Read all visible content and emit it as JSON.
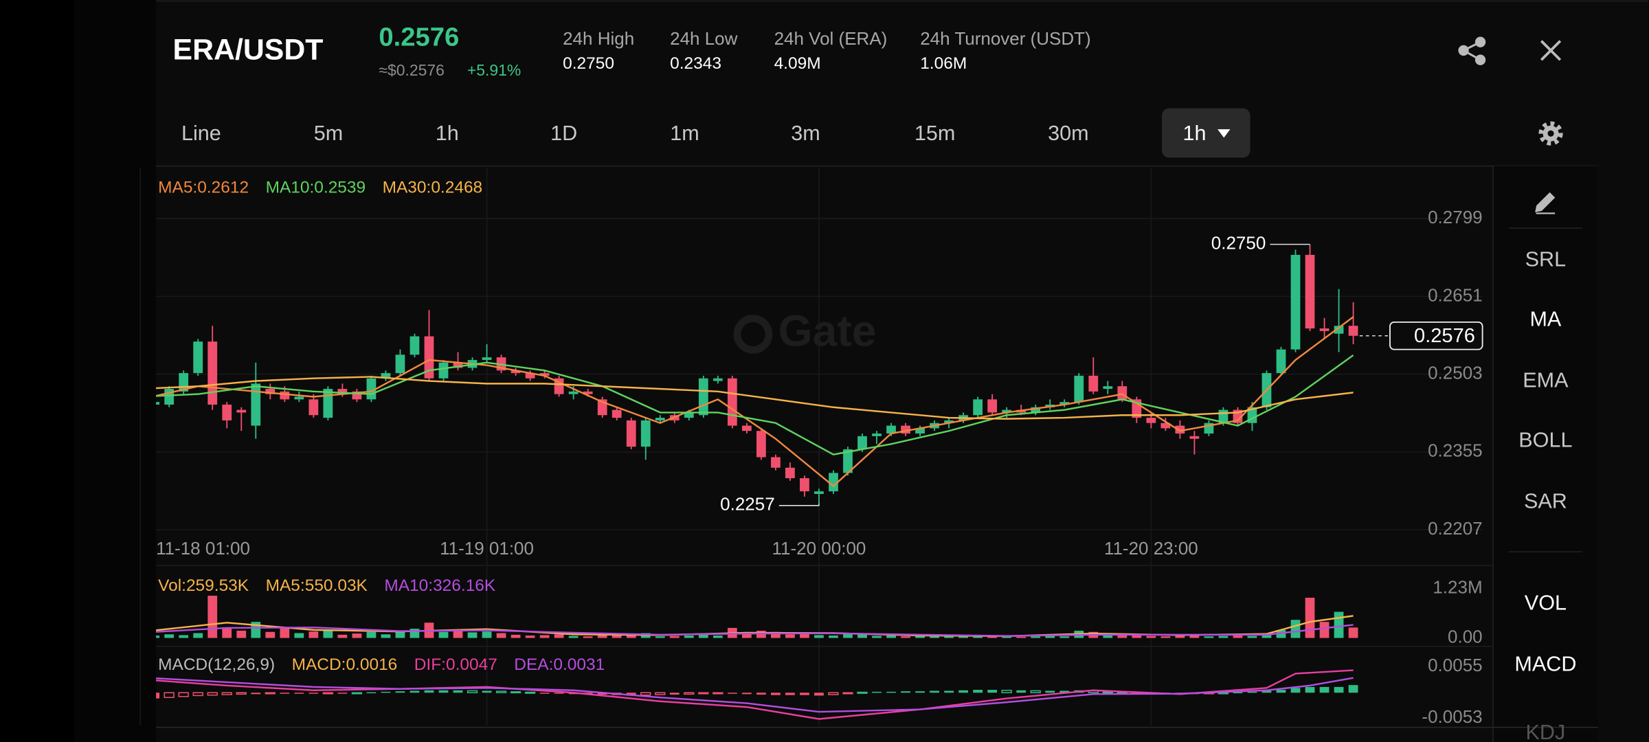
{
  "header": {
    "pair": "ERA/USDT",
    "price": "0.2576",
    "fiat_price": "≈$0.2576",
    "change": "+5.91%",
    "stats": [
      {
        "label": "24h High",
        "value": "0.2750"
      },
      {
        "label": "24h Low",
        "value": "0.2343"
      },
      {
        "label": "24h Vol (ERA)",
        "value": "4.09M"
      },
      {
        "label": "24h Turnover (USDT)",
        "value": "1.06M"
      }
    ]
  },
  "tabs": [
    "Line",
    "5m",
    "1h",
    "1D",
    "1m",
    "3m",
    "15m",
    "30m"
  ],
  "interval_selector": "1h",
  "watermark": "Gate",
  "indicators": [
    "SRL",
    "MA",
    "EMA",
    "BOLL",
    "SAR"
  ],
  "sub_indicators": [
    "VOL",
    "MACD",
    "KDJ"
  ],
  "chart_data": [
    {
      "type": "candlestick",
      "up_color": "#2ebd85",
      "down_color": "#f0506e",
      "grid": true,
      "xlim": [
        0,
        92
      ],
      "ylim": [
        0.2205,
        0.2895
      ],
      "yticks": [
        0.2799,
        0.2651,
        0.2503,
        0.2355,
        0.2207
      ],
      "xticks": [
        {
          "value": 0,
          "label": "11-18 01:00"
        },
        {
          "value": 24,
          "label": "11-19 01:00"
        },
        {
          "value": 47,
          "label": "11-20 00:00"
        },
        {
          "value": 70,
          "label": "11-20 23:00"
        }
      ],
      "x": [
        1,
        2,
        3,
        4,
        5,
        6,
        7,
        8,
        9,
        10,
        11,
        12,
        13,
        14,
        15,
        16,
        17,
        18,
        19,
        20,
        21,
        22,
        23,
        24,
        25,
        26,
        27,
        28,
        29,
        30,
        31,
        32,
        33,
        34,
        35,
        36,
        37,
        38,
        39,
        40,
        41,
        42,
        43,
        44,
        45,
        46,
        47,
        48,
        49,
        50,
        51,
        52,
        53,
        54,
        55,
        56,
        57,
        58,
        59,
        60,
        61,
        62,
        63,
        64,
        65,
        66,
        67,
        68,
        69,
        70,
        71,
        72,
        73,
        74,
        75,
        76,
        77,
        78,
        79,
        80,
        81,
        82,
        83,
        84
      ],
      "open": [
        0.2445,
        0.2445,
        0.247,
        0.2505,
        0.2565,
        0.2445,
        0.2435,
        0.2405,
        0.2475,
        0.247,
        0.2455,
        0.2455,
        0.242,
        0.2475,
        0.247,
        0.2455,
        0.2495,
        0.2505,
        0.254,
        0.2575,
        0.2495,
        0.2525,
        0.2515,
        0.253,
        0.2535,
        0.251,
        0.2505,
        0.2505,
        0.2495,
        0.2465,
        0.247,
        0.2455,
        0.2435,
        0.2415,
        0.2365,
        0.2415,
        0.2425,
        0.242,
        0.2425,
        0.249,
        0.2495,
        0.2405,
        0.2395,
        0.2345,
        0.2325,
        0.2305,
        0.2275,
        0.228,
        0.2315,
        0.236,
        0.2385,
        0.239,
        0.2405,
        0.239,
        0.24,
        0.241,
        0.2415,
        0.2425,
        0.2455,
        0.243,
        0.2435,
        0.243,
        0.244,
        0.2445,
        0.245,
        0.25,
        0.2475,
        0.248,
        0.2455,
        0.242,
        0.241,
        0.2405,
        0.2385,
        0.239,
        0.241,
        0.2435,
        0.241,
        0.244,
        0.2505,
        0.255,
        0.273,
        0.259,
        0.258,
        0.2595
      ],
      "high": [
        0.2455,
        0.248,
        0.251,
        0.257,
        0.2595,
        0.245,
        0.244,
        0.2525,
        0.2485,
        0.248,
        0.247,
        0.2465,
        0.248,
        0.2485,
        0.2475,
        0.25,
        0.251,
        0.255,
        0.258,
        0.2625,
        0.253,
        0.2545,
        0.2535,
        0.256,
        0.254,
        0.2515,
        0.251,
        0.251,
        0.25,
        0.248,
        0.2475,
        0.246,
        0.244,
        0.242,
        0.242,
        0.2425,
        0.243,
        0.2435,
        0.25,
        0.25,
        0.25,
        0.241,
        0.24,
        0.235,
        0.2335,
        0.231,
        0.2285,
        0.232,
        0.2365,
        0.239,
        0.2395,
        0.241,
        0.241,
        0.2405,
        0.2415,
        0.242,
        0.243,
        0.246,
        0.2465,
        0.244,
        0.2445,
        0.2445,
        0.2455,
        0.2455,
        0.2505,
        0.2535,
        0.249,
        0.249,
        0.246,
        0.243,
        0.242,
        0.2415,
        0.2395,
        0.2415,
        0.244,
        0.244,
        0.245,
        0.251,
        0.2555,
        0.274,
        0.275,
        0.261,
        0.2665,
        0.264
      ],
      "low": [
        0.2435,
        0.244,
        0.2465,
        0.25,
        0.2435,
        0.24,
        0.2395,
        0.238,
        0.2455,
        0.245,
        0.245,
        0.242,
        0.2415,
        0.246,
        0.245,
        0.245,
        0.249,
        0.25,
        0.2535,
        0.249,
        0.249,
        0.251,
        0.251,
        0.2525,
        0.2505,
        0.25,
        0.249,
        0.2495,
        0.246,
        0.2455,
        0.246,
        0.242,
        0.2415,
        0.236,
        0.234,
        0.241,
        0.241,
        0.2415,
        0.242,
        0.2485,
        0.24,
        0.239,
        0.234,
        0.232,
        0.23,
        0.227,
        0.2257,
        0.2275,
        0.231,
        0.2355,
        0.237,
        0.2385,
        0.2385,
        0.2385,
        0.2395,
        0.24,
        0.241,
        0.242,
        0.2425,
        0.242,
        0.2425,
        0.2425,
        0.2435,
        0.244,
        0.2445,
        0.2465,
        0.2465,
        0.245,
        0.241,
        0.24,
        0.2395,
        0.238,
        0.235,
        0.2385,
        0.2405,
        0.2405,
        0.2395,
        0.2435,
        0.25,
        0.2545,
        0.2585,
        0.257,
        0.2545,
        0.256
      ],
      "close": [
        0.245,
        0.2475,
        0.2505,
        0.2565,
        0.2445,
        0.2415,
        0.243,
        0.2485,
        0.2465,
        0.2455,
        0.246,
        0.2425,
        0.2475,
        0.2465,
        0.2455,
        0.2495,
        0.2505,
        0.254,
        0.2575,
        0.2495,
        0.2525,
        0.2515,
        0.253,
        0.2535,
        0.251,
        0.2505,
        0.2495,
        0.25,
        0.2465,
        0.247,
        0.2465,
        0.2425,
        0.242,
        0.2365,
        0.2415,
        0.242,
        0.2415,
        0.243,
        0.2495,
        0.2495,
        0.2405,
        0.2395,
        0.2345,
        0.2325,
        0.2305,
        0.228,
        0.228,
        0.2315,
        0.236,
        0.2385,
        0.239,
        0.2405,
        0.239,
        0.24,
        0.241,
        0.2415,
        0.2425,
        0.2455,
        0.243,
        0.2435,
        0.243,
        0.244,
        0.2445,
        0.245,
        0.25,
        0.247,
        0.248,
        0.2455,
        0.242,
        0.241,
        0.24,
        0.239,
        0.238,
        0.241,
        0.2435,
        0.241,
        0.244,
        0.2505,
        0.255,
        0.273,
        0.259,
        0.2585,
        0.2595,
        0.2576
      ],
      "series": [
        {
          "name": "MA5:0.2612",
          "color": "#f0883e",
          "x": [
            0,
            4,
            8,
            12,
            16,
            20,
            24,
            28,
            32,
            36,
            40,
            44,
            48,
            52,
            56,
            60,
            64,
            68,
            72,
            76,
            80,
            84
          ],
          "values": [
            0.2455,
            0.248,
            0.247,
            0.246,
            0.247,
            0.253,
            0.252,
            0.25,
            0.245,
            0.241,
            0.2455,
            0.238,
            0.229,
            0.239,
            0.241,
            0.243,
            0.2445,
            0.2465,
            0.2395,
            0.2415,
            0.253,
            0.2612
          ]
        },
        {
          "name": "MA10:0.2539",
          "color": "#5fd35f",
          "x": [
            0,
            4,
            8,
            12,
            16,
            20,
            24,
            28,
            32,
            36,
            40,
            44,
            48,
            52,
            56,
            60,
            64,
            68,
            72,
            76,
            80,
            84
          ],
          "values": [
            0.246,
            0.2465,
            0.248,
            0.247,
            0.2465,
            0.251,
            0.2525,
            0.251,
            0.248,
            0.243,
            0.243,
            0.241,
            0.235,
            0.237,
            0.2395,
            0.2425,
            0.2435,
            0.2455,
            0.243,
            0.2405,
            0.246,
            0.2539
          ]
        },
        {
          "name": "MA30:0.2468",
          "color": "#f7b34a",
          "x": [
            0,
            4,
            8,
            12,
            16,
            20,
            24,
            28,
            32,
            36,
            40,
            44,
            48,
            52,
            56,
            60,
            64,
            68,
            72,
            76,
            80,
            84
          ],
          "values": [
            0.2475,
            0.248,
            0.249,
            0.2495,
            0.2498,
            0.249,
            0.2485,
            0.2485,
            0.248,
            0.2475,
            0.247,
            0.2455,
            0.244,
            0.243,
            0.242,
            0.2418,
            0.242,
            0.2425,
            0.2425,
            0.243,
            0.2455,
            0.2468
          ]
        }
      ],
      "annotations": [
        {
          "x": 81,
          "value": 0.275,
          "label": "0.2750"
        },
        {
          "x": 47,
          "value": 0.2257,
          "label": "0.2257"
        }
      ],
      "last_price": 0.2576
    },
    {
      "type": "bar",
      "title": "Vol:259.53K",
      "title_color": "#f7b34a",
      "ylim": [
        0,
        1620000
      ],
      "yticks": [
        {
          "value": 1230000,
          "label": "1.23M"
        },
        {
          "value": 0,
          "label": "0.00"
        }
      ],
      "values": [
        60000,
        90000,
        70000,
        120000,
        1050000,
        260000,
        180000,
        400000,
        150000,
        250000,
        120000,
        160000,
        200000,
        80000,
        110000,
        150000,
        90000,
        180000,
        230000,
        380000,
        150000,
        200000,
        140000,
        160000,
        120000,
        80000,
        60000,
        70000,
        90000,
        50000,
        40000,
        80000,
        60000,
        90000,
        120000,
        40000,
        50000,
        60000,
        100000,
        60000,
        250000,
        120000,
        180000,
        150000,
        90000,
        130000,
        70000,
        60000,
        110000,
        90000,
        50000,
        60000,
        40000,
        50000,
        40000,
        50000,
        40000,
        60000,
        50000,
        40000,
        30000,
        40000,
        50000,
        40000,
        180000,
        150000,
        60000,
        70000,
        80000,
        50000,
        40000,
        60000,
        70000,
        40000,
        50000,
        60000,
        50000,
        120000,
        200000,
        450000,
        1000000,
        400000,
        650000,
        259530
      ],
      "series": [
        {
          "name": "MA5:550.03K",
          "color": "#f7b34a",
          "x": [
            0,
            6,
            12,
            18,
            24,
            30,
            36,
            42,
            48,
            54,
            60,
            66,
            72,
            78,
            81,
            84
          ],
          "values": [
            150000,
            380000,
            200000,
            160000,
            220000,
            90000,
            70000,
            130000,
            120000,
            60000,
            45000,
            110000,
            70000,
            100000,
            400000,
            550030
          ]
        },
        {
          "name": "MA10:326.16K",
          "color": "#b44ee0",
          "x": [
            0,
            6,
            12,
            18,
            24,
            30,
            36,
            42,
            48,
            54,
            60,
            66,
            72,
            78,
            81,
            84
          ],
          "values": [
            130000,
            250000,
            260000,
            170000,
            190000,
            130000,
            80000,
            110000,
            115000,
            80000,
            50000,
            80000,
            80000,
            80000,
            200000,
            326160
          ]
        }
      ]
    },
    {
      "type": "macd",
      "title": "MACD(12,26,9)",
      "ylim": [
        -0.0068,
        0.0086
      ],
      "yticks": [
        0.0055,
        -0.0053
      ],
      "histogram": {
        "name": "MACD:0.0016",
        "color": "#f7b34a",
        "values": [
          -0.0012,
          -0.001,
          -0.0008,
          -0.0006,
          -0.0005,
          -0.0004,
          -0.0003,
          -0.0003,
          -0.0002,
          -0.0002,
          -0.0002,
          -0.0002,
          -0.0001,
          -0.0001,
          0,
          0.0001,
          0.0002,
          0.0003,
          0.0004,
          0.0005,
          0.0005,
          0.0005,
          0.0004,
          0.0004,
          0.0003,
          0.0002,
          0.0001,
          -0.0001,
          -0.0002,
          -0.0003,
          -0.0003,
          -0.0004,
          -0.0005,
          -0.0006,
          -0.0005,
          -0.0004,
          -0.0004,
          -0.0003,
          -0.0002,
          -0.0001,
          -0.0002,
          -0.0003,
          -0.0004,
          -0.0005,
          -0.0005,
          -0.0005,
          -0.0006,
          -0.0004,
          -0.0002,
          0.0001,
          0.0002,
          0.0002,
          0.0003,
          0.0003,
          0.0004,
          0.0004,
          0.0005,
          0.0006,
          0.0006,
          0.0005,
          0.0005,
          0.0004,
          0.0004,
          0.0004,
          0.0005,
          0.0004,
          0.0002,
          0,
          -0.0002,
          -0.0003,
          -0.0003,
          -0.0003,
          -0.0003,
          -0.0002,
          0,
          0.0001,
          0.0002,
          0.0004,
          0.0006,
          0.001,
          0.0012,
          0.0012,
          0.0012,
          0.0016
        ]
      },
      "series": [
        {
          "name": "DIF:0.0047",
          "color": "#e83fa0",
          "x": [
            0,
            6,
            12,
            18,
            24,
            30,
            36,
            42,
            47,
            54,
            60,
            66,
            72,
            78,
            80,
            84
          ],
          "values": [
            0.0028,
            0.0015,
            0.0005,
            0.0008,
            0.0012,
            0,
            -0.0018,
            -0.003,
            -0.0055,
            -0.0035,
            -0.0012,
            0.0005,
            -0.0003,
            0.001,
            0.004,
            0.0047
          ]
        },
        {
          "name": "DEA:0.0031",
          "color": "#b44ee0",
          "x": [
            0,
            6,
            12,
            18,
            24,
            30,
            36,
            42,
            47,
            54,
            60,
            66,
            72,
            78,
            81,
            84
          ],
          "values": [
            0.0032,
            0.0022,
            0.0012,
            0.0008,
            0.001,
            0.0005,
            -0.001,
            -0.0022,
            -0.004,
            -0.0035,
            -0.002,
            -0.0003,
            -0.0002,
            0.0005,
            0.0015,
            0.0031
          ]
        }
      ]
    }
  ]
}
